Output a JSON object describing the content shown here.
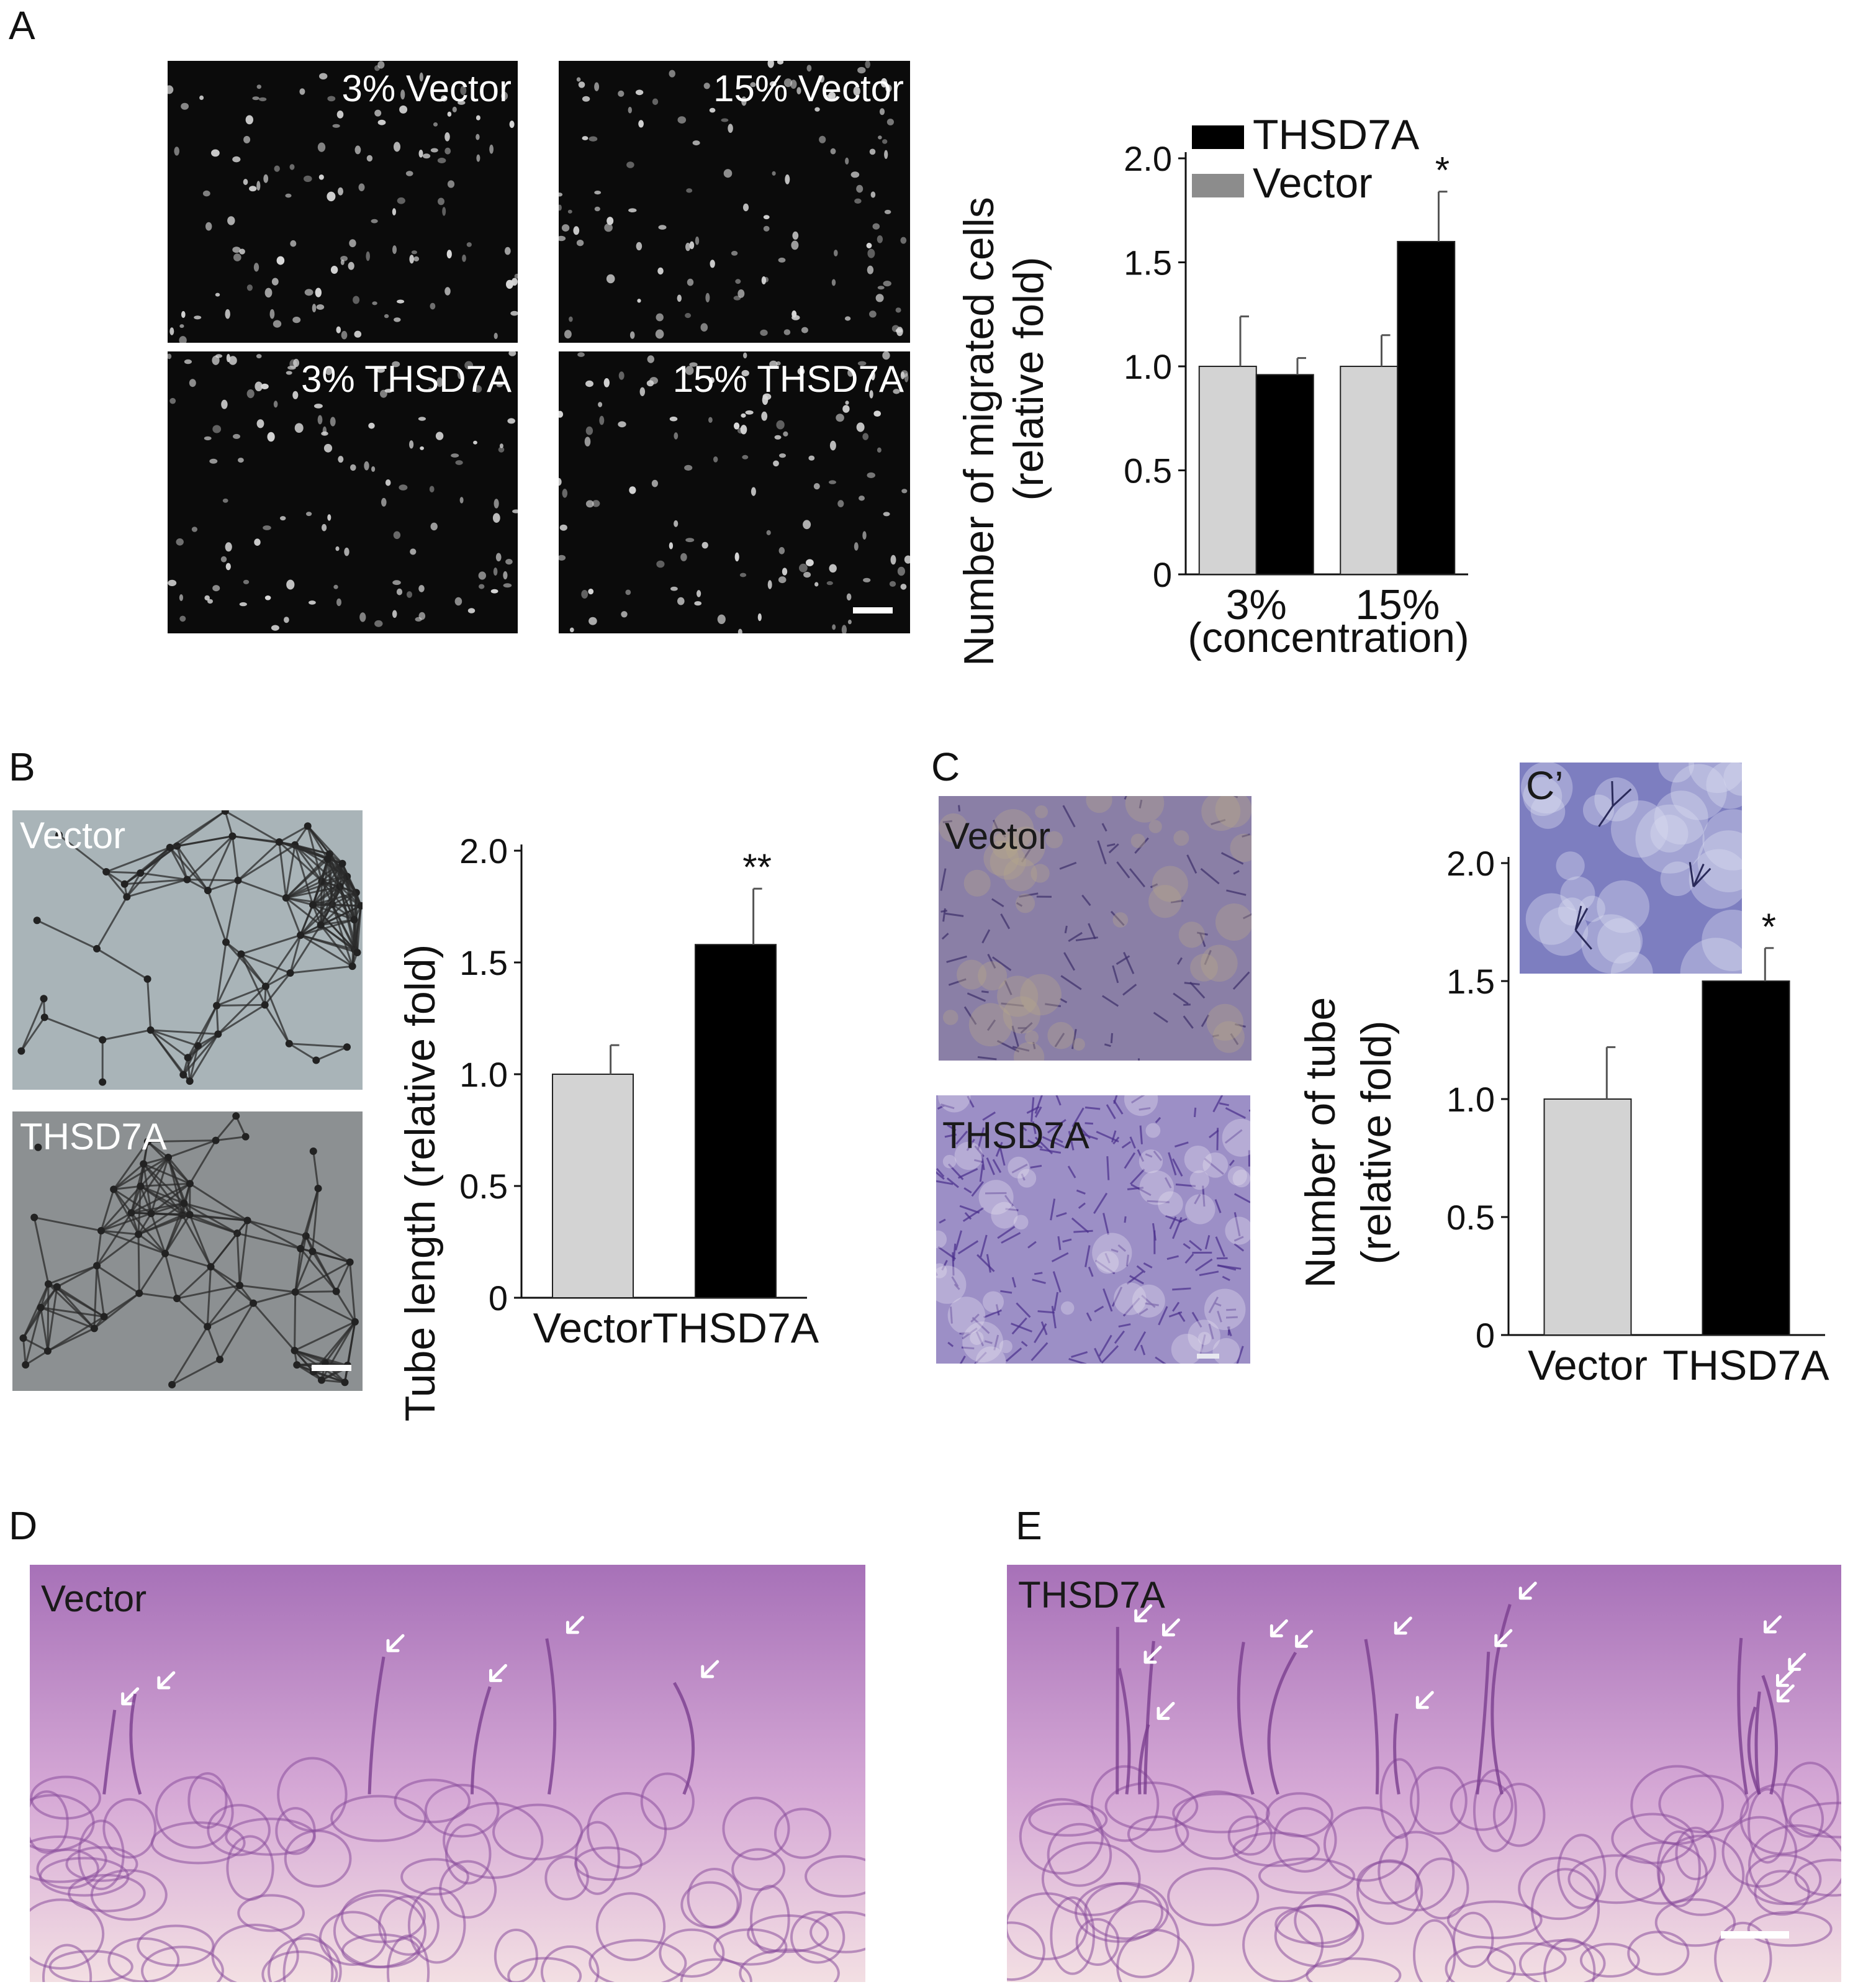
{
  "panels": {
    "A": {
      "letter": "A",
      "images": [
        {
          "label": "3% Vector"
        },
        {
          "label": "15% Vector"
        },
        {
          "label": "3% THSD7A"
        },
        {
          "label": "15% THSD7A"
        }
      ]
    },
    "B": {
      "letter": "B",
      "images": [
        {
          "label": "Vector"
        },
        {
          "label": "THSD7A"
        }
      ]
    },
    "C": {
      "letter": "C",
      "inset_letter": "C’",
      "images": [
        {
          "label": "Vector"
        },
        {
          "label": "THSD7A"
        }
      ]
    },
    "D": {
      "letter": "D",
      "label": "Vector"
    },
    "E": {
      "letter": "E",
      "label": "THSD7A"
    }
  },
  "colors": {
    "vector_bar": "#d3d3d3",
    "thsd7a_bar": "#000000",
    "legend_vector": "#8c8c8c",
    "c_stain": "#7b6fb8",
    "de_stain": "#b87fc6"
  },
  "chart_data": [
    {
      "id": "A",
      "type": "bar",
      "categories": [
        "3%",
        "15%"
      ],
      "series": [
        {
          "name": "Vector",
          "values": [
            1.0,
            1.0
          ],
          "errors": [
            0.24,
            0.15
          ]
        },
        {
          "name": "THSD7A",
          "values": [
            0.96,
            1.6
          ],
          "errors": [
            0.08,
            0.24
          ]
        }
      ],
      "significance": [
        {
          "category": "15%",
          "series": "THSD7A",
          "mark": "*"
        }
      ],
      "yticks": [
        "0",
        "0.5",
        "1.0",
        "1.5",
        "2.0"
      ],
      "ylim": [
        0,
        2.0
      ],
      "ylabel_lines": [
        "Number of migrated cells",
        "(relative fold)"
      ],
      "xlabel": "(concentration)",
      "legend": [
        "THSD7A",
        "Vector"
      ],
      "legend_position": "top-left"
    },
    {
      "id": "B",
      "type": "bar",
      "categories": [
        "Vector",
        "THSD7A"
      ],
      "values": [
        1.0,
        1.58
      ],
      "errors": [
        0.13,
        0.25
      ],
      "significance": [
        {
          "category": "THSD7A",
          "mark": "**"
        }
      ],
      "yticks": [
        "0",
        "0.5",
        "1.0",
        "1.5",
        "2.0"
      ],
      "ylim": [
        0,
        2.0
      ],
      "ylabel_lines": [
        "Tube length (relative fold)"
      ],
      "xlabel": ""
    },
    {
      "id": "C",
      "type": "bar",
      "categories": [
        "Vector",
        "THSD7A"
      ],
      "values": [
        1.0,
        1.5
      ],
      "errors": [
        0.22,
        0.14
      ],
      "significance": [
        {
          "category": "THSD7A",
          "mark": "*"
        }
      ],
      "yticks": [
        "0",
        "0.5",
        "1.0",
        "1.5",
        "2.0"
      ],
      "ylim": [
        0,
        2.0
      ],
      "ylabel_lines": [
        "Number of tube",
        "(relative fold)"
      ],
      "xlabel": ""
    }
  ]
}
